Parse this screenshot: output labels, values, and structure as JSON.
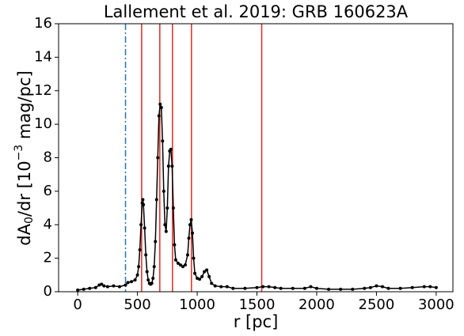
{
  "chart_data": {
    "type": "line",
    "title": "Lallement et al. 2019: GRB 160623A",
    "xlabel": "r [pc]",
    "ylabel": [
      "dA",
      "0",
      "/dr [10",
      "−3",
      " mag/pc]"
    ],
    "xlim": [
      -160,
      3140
    ],
    "ylim": [
      0,
      16
    ],
    "xticks": [
      0,
      500,
      1000,
      1500,
      2000,
      2500,
      3000
    ],
    "yticks": [
      0,
      2,
      4,
      6,
      8,
      10,
      12,
      14,
      16
    ],
    "color": "#000000",
    "x": [
      0,
      50,
      100,
      150,
      180,
      200,
      220,
      250,
      300,
      350,
      400,
      420,
      450,
      480,
      500,
      510,
      520,
      530,
      540,
      545,
      550,
      560,
      570,
      580,
      590,
      600,
      610,
      620,
      630,
      640,
      650,
      660,
      670,
      680,
      690,
      700,
      710,
      720,
      730,
      740,
      750,
      760,
      770,
      780,
      790,
      800,
      810,
      820,
      840,
      860,
      880,
      900,
      920,
      930,
      940,
      950,
      960,
      970,
      980,
      1000,
      1020,
      1040,
      1060,
      1080,
      1100,
      1120,
      1150,
      1200,
      1250,
      1300,
      1400,
      1500,
      1550,
      1600,
      1650,
      1700,
      1800,
      1900,
      1950,
      2000,
      2100,
      2200,
      2300,
      2400,
      2450,
      2500,
      2550,
      2600,
      2700,
      2800,
      2900,
      2950,
      3000
    ],
    "values": [
      0.1,
      0.15,
      0.2,
      0.25,
      0.4,
      0.45,
      0.35,
      0.3,
      0.35,
      0.3,
      0.4,
      0.55,
      0.6,
      0.7,
      1.0,
      1.5,
      2.5,
      4.0,
      5.3,
      5.5,
      5.2,
      3.8,
      2.2,
      1.2,
      0.7,
      0.5,
      0.45,
      0.5,
      0.8,
      1.5,
      3.0,
      5.5,
      8.0,
      10.5,
      11.2,
      11.0,
      9.0,
      6.0,
      4.0,
      3.6,
      5.0,
      7.5,
      8.4,
      8.5,
      7.5,
      5.0,
      2.8,
      1.9,
      1.7,
      1.6,
      1.5,
      1.6,
      2.2,
      3.2,
      4.0,
      4.3,
      3.5,
      2.0,
      1.1,
      0.8,
      0.75,
      0.9,
      1.2,
      1.3,
      0.9,
      0.5,
      0.35,
      0.3,
      0.3,
      0.2,
      0.2,
      0.25,
      0.3,
      0.3,
      0.25,
      0.2,
      0.2,
      0.2,
      0.3,
      0.2,
      0.15,
      0.15,
      0.15,
      0.2,
      0.25,
      0.35,
      0.3,
      0.2,
      0.2,
      0.25,
      0.3,
      0.3,
      0.25
    ],
    "vlines": [
      {
        "x": 400,
        "color": "#1f77b4",
        "style": "dashdot"
      },
      {
        "x": 535,
        "color": "#e8281e",
        "style": "solid"
      },
      {
        "x": 687,
        "color": "#e8281e",
        "style": "solid"
      },
      {
        "x": 793,
        "color": "#e8281e",
        "style": "solid"
      },
      {
        "x": 952,
        "color": "#e8281e",
        "style": "solid"
      },
      {
        "x": 1540,
        "color": "#e8281e",
        "style": "solid"
      }
    ]
  }
}
